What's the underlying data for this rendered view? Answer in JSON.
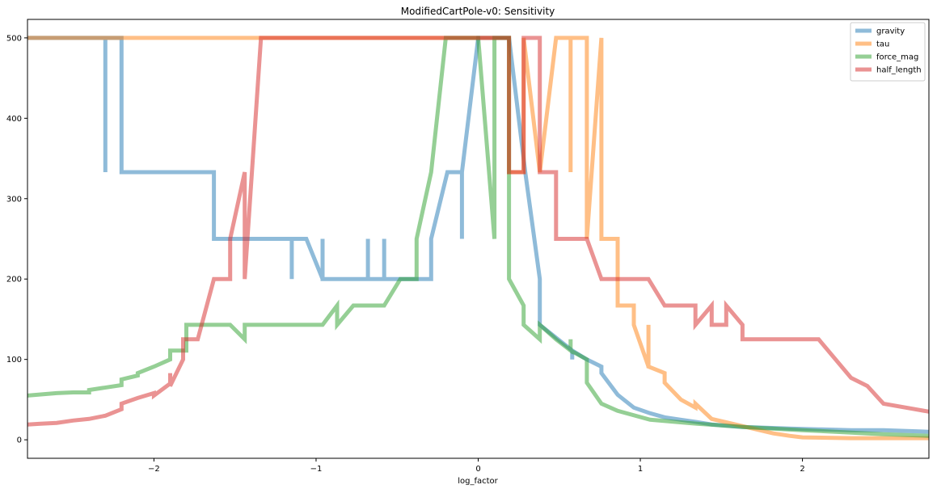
{
  "chart_data": {
    "type": "line",
    "title": "ModifiedCartPole-v0: Sensitivity",
    "xlabel": "log_factor",
    "ylabel": "",
    "xlim": [
      -2.78,
      2.78
    ],
    "ylim": [
      -23,
      523
    ],
    "xticks": [
      -2,
      -1,
      0,
      1,
      2
    ],
    "xtick_labels": [
      "−2",
      "−1",
      "0",
      "1",
      "2"
    ],
    "yticks": [
      0,
      100,
      200,
      300,
      400,
      500
    ],
    "ytick_labels": [
      "0",
      "100",
      "200",
      "300",
      "400",
      "500"
    ],
    "grid": false,
    "legend": "top-right",
    "series": [
      {
        "name": "gravity",
        "color": "#1f77b4",
        "x": [
          -2.78,
          -2.3,
          -2.3,
          -2.3,
          -2.2,
          -2.2,
          -1.63,
          -1.63,
          -1.15,
          -1.15,
          -1.15,
          -1.06,
          -0.96,
          -0.96,
          -0.96,
          -0.87,
          -0.68,
          -0.68,
          -0.68,
          -0.58,
          -0.58,
          -0.58,
          -0.48,
          -0.29,
          -0.29,
          -0.19,
          -0.19,
          -0.1,
          -0.1,
          -0.1,
          -0.1,
          -0.1,
          -0.1,
          0.0,
          0.0,
          0.0,
          0.19,
          0.29,
          0.29,
          0.38,
          0.38,
          0.38,
          0.38,
          0.58,
          0.58,
          0.58,
          0.67,
          0.76,
          0.76,
          0.86,
          0.96,
          1.06,
          1.15,
          1.25,
          1.35,
          1.44,
          1.63,
          1.92,
          2.1,
          2.3,
          2.5,
          2.78
        ],
        "y": [
          500,
          500,
          333,
          500,
          500,
          333,
          333,
          250,
          250,
          200,
          250,
          250,
          200,
          250,
          200,
          200,
          200,
          250,
          200,
          200,
          250,
          200,
          200,
          200,
          250,
          333,
          333,
          333,
          250,
          250,
          333,
          333,
          333,
          500,
          500,
          500,
          500,
          333,
          333,
          200,
          167,
          143,
          143,
          111,
          100,
          111,
          100,
          91,
          83,
          56,
          40,
          33,
          28,
          25,
          22,
          19,
          16,
          14,
          13,
          12,
          12,
          10
        ]
      },
      {
        "name": "tau",
        "color": "#ff7f0e",
        "x": [
          -2.78,
          0.19,
          0.19,
          0.28,
          0.28,
          0.38,
          0.38,
          0.48,
          0.48,
          0.57,
          0.57,
          0.57,
          0.67,
          0.67,
          0.67,
          0.76,
          0.76,
          0.76,
          0.86,
          0.86,
          0.86,
          0.96,
          0.96,
          1.05,
          1.05,
          1.05,
          1.15,
          1.15,
          1.25,
          1.34,
          1.34,
          1.44,
          1.63,
          1.82,
          1.92,
          2.0,
          2.3,
          2.78
        ],
        "y": [
          500,
          500,
          333,
          333,
          500,
          333,
          333,
          500,
          500,
          500,
          333,
          500,
          500,
          250,
          250,
          500,
          250,
          250,
          250,
          167,
          167,
          167,
          143,
          91,
          143,
          91,
          83,
          71,
          50,
          40,
          45,
          26,
          17,
          8,
          5,
          3,
          2,
          2
        ]
      },
      {
        "name": "force_mag",
        "color": "#2ca02c",
        "x": [
          -2.78,
          -2.6,
          -2.5,
          -2.4,
          -2.4,
          -2.2,
          -2.2,
          -2.1,
          -2.1,
          -2.0,
          -1.9,
          -1.9,
          -1.8,
          -1.8,
          -1.8,
          -1.73,
          -1.73,
          -1.53,
          -1.44,
          -1.44,
          -1.44,
          -1.34,
          -0.96,
          -0.87,
          -0.87,
          -0.77,
          -0.58,
          -0.48,
          -0.48,
          -0.38,
          -0.38,
          -0.29,
          -0.29,
          -0.2,
          -0.19,
          0.0,
          0.0,
          0.1,
          0.1,
          0.19,
          0.19,
          0.28,
          0.28,
          0.38,
          0.38,
          0.38,
          0.48,
          0.57,
          0.57,
          0.57,
          0.67,
          0.67,
          0.76,
          0.86,
          1.06,
          1.35,
          1.63,
          2.0,
          2.5,
          2.78
        ],
        "y": [
          55,
          58,
          59,
          59,
          62,
          68,
          75,
          80,
          83,
          91,
          100,
          111,
          111,
          143,
          143,
          143,
          143,
          143,
          125,
          125,
          143,
          143,
          143,
          167,
          143,
          167,
          167,
          200,
          200,
          200,
          250,
          333,
          333,
          500,
          500,
          500,
          500,
          250,
          500,
          500,
          200,
          167,
          143,
          125,
          125,
          143,
          125,
          111,
          125,
          111,
          100,
          71,
          45,
          36,
          25,
          20,
          16,
          12,
          7,
          5
        ]
      },
      {
        "name": "half_length",
        "color": "#d62728",
        "x": [
          -2.78,
          -2.7,
          -2.6,
          -2.5,
          -2.4,
          -2.3,
          -2.2,
          -2.2,
          -2.1,
          -2.0,
          -2.0,
          -1.9,
          -1.9,
          -1.9,
          -1.82,
          -1.82,
          -1.82,
          -1.73,
          -1.73,
          -1.63,
          -1.53,
          -1.53,
          -1.44,
          -1.44,
          -1.44,
          -1.34,
          -0.2,
          -0.2,
          0.19,
          0.19,
          0.19,
          0.28,
          0.28,
          0.38,
          0.38,
          0.38,
          0.48,
          0.48,
          0.57,
          0.67,
          0.67,
          0.76,
          0.86,
          1.05,
          1.05,
          1.15,
          1.34,
          1.34,
          1.44,
          1.44,
          1.53,
          1.53,
          1.63,
          1.63,
          2.1,
          2.3,
          2.4,
          2.5,
          2.78
        ],
        "y": [
          19,
          20,
          21,
          24,
          26,
          30,
          38,
          45,
          52,
          58,
          55,
          70,
          83,
          67,
          100,
          125,
          125,
          125,
          125,
          200,
          200,
          250,
          333,
          200,
          200,
          500,
          500,
          500,
          500,
          500,
          333,
          333,
          500,
          500,
          333,
          333,
          333,
          250,
          250,
          250,
          250,
          200,
          200,
          200,
          200,
          167,
          167,
          143,
          167,
          143,
          143,
          167,
          143,
          125,
          125,
          77,
          67,
          45,
          35
        ]
      }
    ]
  }
}
